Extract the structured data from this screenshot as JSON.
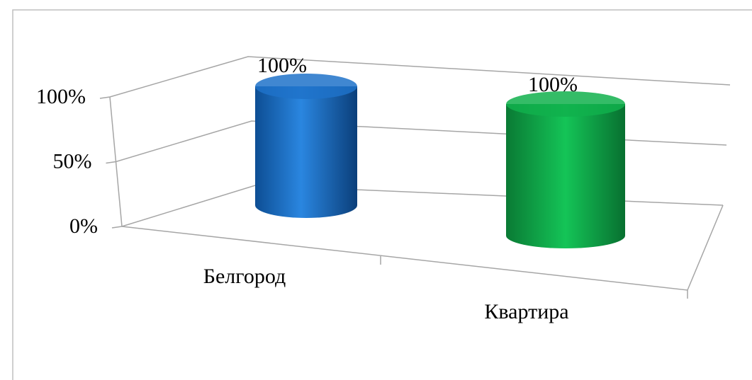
{
  "chart_data": {
    "type": "bar",
    "categories": [
      "Белгород",
      "Квартира"
    ],
    "values": [
      100,
      100
    ],
    "value_labels": [
      "100%",
      "100%"
    ],
    "colors": [
      "#1f72c9",
      "#10b04c"
    ],
    "ylim": [
      0,
      100
    ],
    "yticks": [
      {
        "value": 0,
        "label": "0%"
      },
      {
        "value": 50,
        "label": "50%"
      },
      {
        "value": 100,
        "label": "100%"
      }
    ],
    "grid": true
  }
}
